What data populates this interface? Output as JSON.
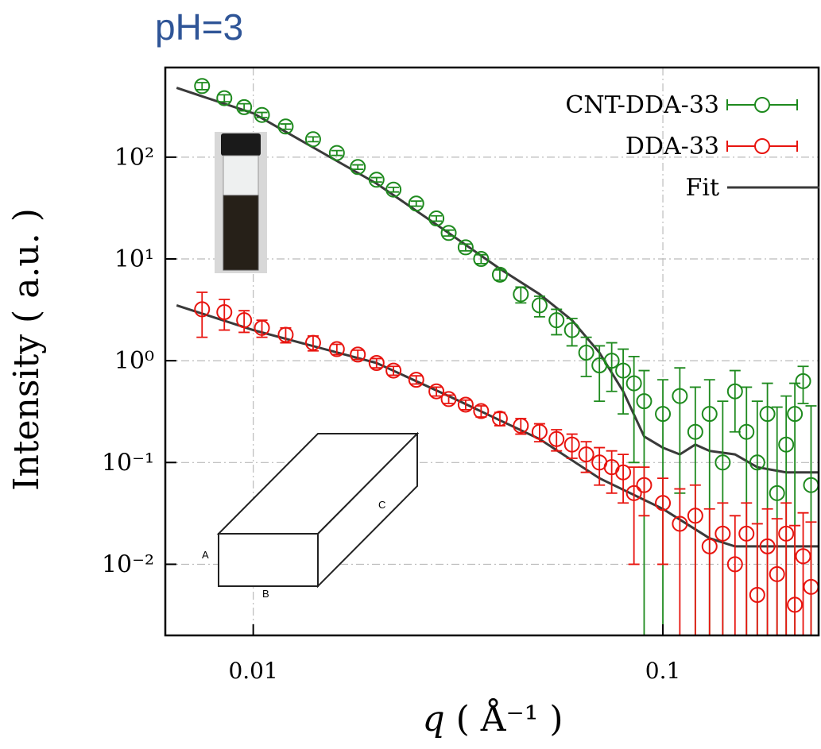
{
  "chart_data": {
    "type": "scatter",
    "title": "pH=3",
    "x_label": {
      "symbol": "q",
      "unit": "( Å⁻¹ )"
    },
    "y_label": "Intensity ( a.u. )",
    "log_x": true,
    "log_y": true,
    "grid": true,
    "legend": "top-right",
    "xlim": [
      0.0061,
      0.24
    ],
    "ylim": [
      0.002,
      760
    ],
    "xticks": [
      0.01,
      0.1
    ],
    "yticks": [
      {
        "value": 0.01,
        "label": "10⁻²"
      },
      {
        "value": 0.1,
        "label": "10⁻¹"
      },
      {
        "value": 1,
        "label": "10⁰"
      },
      {
        "value": 10,
        "label": "10¹"
      },
      {
        "value": 100,
        "label": "10²"
      }
    ],
    "series": [
      {
        "name": "CNT-DDA-33",
        "color": "#1e8a1e",
        "x": [
          0.0075,
          0.0085,
          0.0095,
          0.0105,
          0.012,
          0.014,
          0.016,
          0.018,
          0.02,
          0.022,
          0.025,
          0.028,
          0.03,
          0.033,
          0.036,
          0.04,
          0.045,
          0.05,
          0.055,
          0.06,
          0.065,
          0.07,
          0.075,
          0.08,
          0.085,
          0.09,
          0.1,
          0.11,
          0.12,
          0.13,
          0.14,
          0.15,
          0.16,
          0.17,
          0.18,
          0.19,
          0.2,
          0.21,
          0.22,
          0.23
        ],
        "values": [
          500,
          380,
          310,
          260,
          200,
          150,
          110,
          80,
          60,
          48,
          35,
          25,
          18,
          13,
          10,
          7,
          4.5,
          3.5,
          2.5,
          2,
          1.2,
          0.9,
          1,
          0.8,
          0.6,
          0.4,
          0.3,
          0.45,
          0.2,
          0.3,
          0.1,
          0.5,
          0.2,
          0.1,
          0.3,
          0.05,
          0.15,
          0.3,
          0.63,
          0.06
        ],
        "errors": [
          40,
          30,
          25,
          15,
          12,
          8,
          6,
          4,
          3,
          2.5,
          2,
          1.5,
          1.2,
          1,
          1,
          0.8,
          0.8,
          0.8,
          0.7,
          0.6,
          0.5,
          0.5,
          0.5,
          0.5,
          0.5,
          0.4,
          0.35,
          0.4,
          0.35,
          0.35,
          0.3,
          0.3,
          0.35,
          0.3,
          0.3,
          0.3,
          0.3,
          0.3,
          0.25,
          0.3
        ]
      },
      {
        "name": "DDA-33",
        "color": "#e8140f",
        "x": [
          0.0075,
          0.0085,
          0.0095,
          0.0105,
          0.012,
          0.014,
          0.016,
          0.018,
          0.02,
          0.022,
          0.025,
          0.028,
          0.03,
          0.033,
          0.036,
          0.04,
          0.045,
          0.05,
          0.055,
          0.06,
          0.065,
          0.07,
          0.075,
          0.08,
          0.085,
          0.09,
          0.1,
          0.11,
          0.12,
          0.13,
          0.14,
          0.15,
          0.16,
          0.17,
          0.18,
          0.19,
          0.2,
          0.21,
          0.22,
          0.23
        ],
        "values": [
          3.2,
          3,
          2.5,
          2.1,
          1.8,
          1.5,
          1.3,
          1.15,
          0.95,
          0.8,
          0.65,
          0.5,
          0.42,
          0.37,
          0.32,
          0.27,
          0.23,
          0.2,
          0.17,
          0.15,
          0.12,
          0.1,
          0.09,
          0.08,
          0.05,
          0.06,
          0.04,
          0.025,
          0.03,
          0.015,
          0.02,
          0.01,
          0.02,
          0.005,
          0.015,
          0.008,
          0.02,
          0.004,
          0.012,
          0.006
        ],
        "errors": [
          1.5,
          1,
          0.6,
          0.4,
          0.3,
          0.25,
          0.15,
          0.12,
          0.1,
          0.08,
          0.06,
          0.05,
          0.04,
          0.04,
          0.04,
          0.04,
          0.04,
          0.04,
          0.04,
          0.04,
          0.04,
          0.04,
          0.04,
          0.04,
          0.04,
          0.03,
          0.03,
          0.03,
          0.03,
          0.02,
          0.02,
          0.02,
          0.02,
          0.02,
          0.02,
          0.02,
          0.02,
          0.02,
          0.02,
          0.02
        ]
      }
    ],
    "fit": {
      "name": "Fit",
      "color": "#3a3a3a",
      "lines": [
        {
          "x": [
            0.0065,
            0.01,
            0.02,
            0.03,
            0.04,
            0.05,
            0.06,
            0.07,
            0.08,
            0.09,
            0.1,
            0.11,
            0.12,
            0.13,
            0.15,
            0.17,
            0.2,
            0.24
          ],
          "values": [
            480,
            270,
            55,
            18,
            8,
            4.5,
            2.5,
            1.2,
            0.5,
            0.18,
            0.14,
            0.12,
            0.15,
            0.13,
            0.12,
            0.09,
            0.08,
            0.08
          ]
        },
        {
          "x": [
            0.0065,
            0.01,
            0.02,
            0.03,
            0.05,
            0.07,
            0.1,
            0.13,
            0.15,
            0.24
          ],
          "values": [
            3.5,
            2,
            0.95,
            0.45,
            0.17,
            0.07,
            0.035,
            0.018,
            0.015,
            0.015
          ]
        }
      ]
    },
    "inset_labels": [
      "A",
      "B",
      "C"
    ]
  }
}
